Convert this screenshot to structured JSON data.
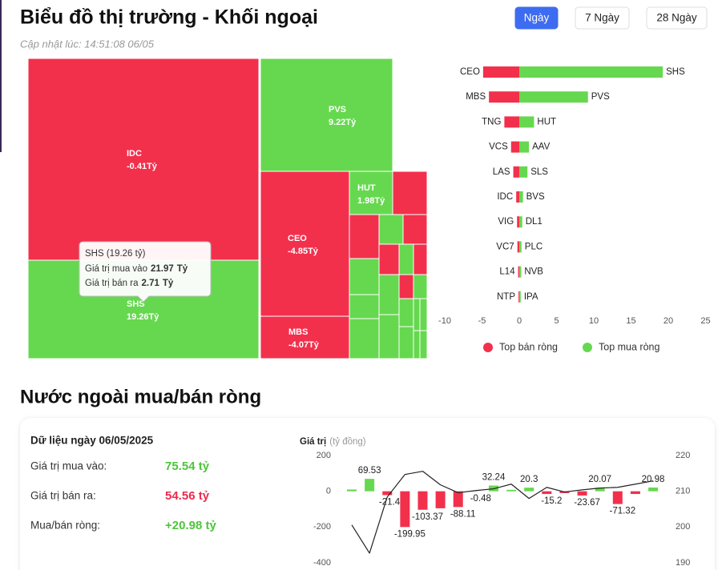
{
  "header": {
    "title": "Biểu đồ thị trường - Khối ngoại",
    "updated": "Cập nhật lúc: 14:51:08 06/05",
    "tabs": [
      "Ngày",
      "7 Ngày",
      "28 Ngày"
    ],
    "active_tab": 0
  },
  "section_title": "Nước ngoài mua/bán ròng",
  "summary": {
    "date_label": "Dữ liệu ngày 06/05/2025",
    "rows": [
      {
        "label": "Giá trị mua vào:",
        "value": "75.54 tỷ"
      },
      {
        "label": "Giá trị bán ra:",
        "value": "54.56 tỷ"
      },
      {
        "label": "Mua/bán ròng:",
        "value": "+20.98 tỷ"
      }
    ]
  },
  "chart_data": [
    {
      "type": "treemap",
      "color_positive": "#66d84f",
      "color_negative": "#f2304c",
      "tiles": [
        {
          "name": "IDC",
          "value": -0.41,
          "value_label": "-0.41Tỷ"
        },
        {
          "name": "SHS",
          "value": 19.26,
          "value_label": "19.26Tỷ"
        },
        {
          "name": "PVS",
          "value": 9.22,
          "value_label": "9.22Tỷ"
        },
        {
          "name": "CEO",
          "value": -4.85,
          "value_label": "-4.85Tỷ"
        },
        {
          "name": "MBS",
          "value": -4.07,
          "value_label": "-4.07Tỷ"
        },
        {
          "name": "HUT",
          "value": 1.98,
          "value_label": "1.98Tỷ"
        }
      ],
      "tooltip": {
        "title": "SHS (19.26 tỷ)",
        "rows": [
          {
            "label": "Giá trị mua vào",
            "value": 21.97,
            "unit": "Tỷ"
          },
          {
            "label": "Giá trị bán ra",
            "value": 2.71,
            "unit": "Tỷ"
          }
        ]
      }
    },
    {
      "type": "bar",
      "orientation": "horizontal",
      "xlim": [
        -10,
        25
      ],
      "xticks": [
        -10,
        -5,
        0,
        5,
        10,
        15,
        20,
        25
      ],
      "series": [
        {
          "name": "Top bán ròng",
          "color": "#f2304c",
          "labels": [
            "CEO",
            "MBS",
            "TNG",
            "VCS",
            "LAS",
            "IDC",
            "VIG",
            "VC7",
            "L14",
            "NTP"
          ],
          "values": [
            -4.85,
            -4.07,
            -2.0,
            -1.1,
            -0.8,
            -0.41,
            -0.3,
            -0.25,
            -0.15,
            -0.1
          ]
        },
        {
          "name": "Top mua ròng",
          "color": "#66d84f",
          "labels": [
            "SHS",
            "PVS",
            "HUT",
            "AAV",
            "SLS",
            "BVS",
            "DL1",
            "PLC",
            "NVB",
            "IPA"
          ],
          "values": [
            19.26,
            9.22,
            1.98,
            1.3,
            1.1,
            0.5,
            0.4,
            0.3,
            0.25,
            0.2
          ]
        }
      ]
    },
    {
      "type": "combo",
      "y_label": "Giá trị",
      "y_label_unit": "(tỷ đồng)",
      "ylim": [
        -400,
        200
      ],
      "yticks": [
        200,
        0,
        -200,
        -400
      ],
      "y2lim": [
        190,
        220
      ],
      "y2ticks": [
        220,
        210,
        200,
        190
      ],
      "series": [
        {
          "type": "bar",
          "color_positive": "#66d84f",
          "color_negative": "#f2304c",
          "values": [
            10,
            69.53,
            -21.43,
            -199.95,
            -103.37,
            -95,
            -88.11,
            -0.48,
            32.24,
            8,
            20.3,
            -15.2,
            -10,
            -23.67,
            20.07,
            -71.32,
            -15,
            20.98
          ],
          "value_labels": [
            null,
            "69.53",
            "-21.43",
            "-199.95",
            "-103.37",
            null,
            "-88.11",
            "-0.48",
            "32.24",
            null,
            "20.3",
            "-15.2",
            null,
            "-23.67",
            "20.07",
            "-71.32",
            null,
            "20.98"
          ]
        },
        {
          "type": "line",
          "axis": "y2",
          "color": "#222222",
          "values": [
            200.6,
            192.7,
            208.4,
            214.7,
            215.6,
            211.8,
            209.6,
            210.2,
            210.7,
            212.0,
            208.0,
            211.1,
            209.8,
            210.4,
            210.9,
            211.1,
            212.0,
            212.9
          ]
        }
      ]
    }
  ]
}
